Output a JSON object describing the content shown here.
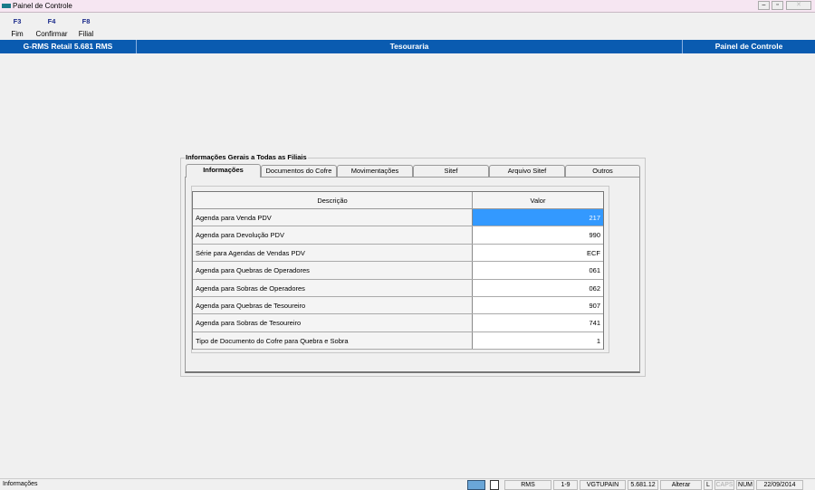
{
  "window": {
    "title": "Painel de Controle",
    "controls": [
      "minimize",
      "restore",
      "close"
    ]
  },
  "toolbar": [
    {
      "key": "F3",
      "label": "Fim"
    },
    {
      "key": "F4",
      "label": "Confirmar"
    },
    {
      "key": "F8",
      "label": "Filial"
    }
  ],
  "header": {
    "app": "G-RMS Retail 5.681 RMS",
    "module": "Tesouraria",
    "screen": "Painel de Controle"
  },
  "group": {
    "title": "Informações Gerais a Todas as Filiais"
  },
  "tabs": [
    {
      "label": "Informações",
      "active": true
    },
    {
      "label": "Documentos do Cofre"
    },
    {
      "label": "Movimentações"
    },
    {
      "label": "Sitef"
    },
    {
      "label": "Arquivo Sitef"
    },
    {
      "label": "Outros"
    }
  ],
  "table": {
    "columns": [
      "Descrição",
      "Valor"
    ],
    "rows": [
      {
        "desc": "Agenda para Venda PDV",
        "value": "217"
      },
      {
        "desc": "Agenda para Devolução PDV",
        "value": "990"
      },
      {
        "desc": "Série para Agendas de Vendas PDV",
        "value": "ECF"
      },
      {
        "desc": "Agenda para Quebras de Operadores",
        "value": "061"
      },
      {
        "desc": "Agenda para Sobras de Operadores",
        "value": "062"
      },
      {
        "desc": "Agenda para Quebras de Tesoureiro",
        "value": "907"
      },
      {
        "desc": "Agenda para Sobras de Tesoureiro",
        "value": "741"
      },
      {
        "desc": "Tipo de Documento do Cofre para Quebra e Sobra",
        "value": "1"
      }
    ],
    "selected_row": 0,
    "selection_color": "#3399ff"
  },
  "status": {
    "message": "Informações",
    "cells": [
      "RMS",
      "1-9",
      "VGTUPAIN",
      "5.681.12",
      "Alterar",
      "L",
      "CAPS",
      "NUM",
      "22/09/2014"
    ]
  },
  "colors": {
    "header_bg": "#0a5bb0"
  }
}
